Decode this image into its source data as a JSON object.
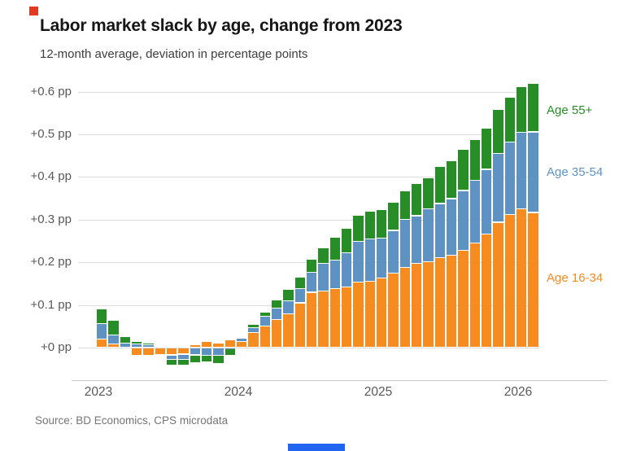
{
  "header": {
    "title": "Labor market slack by age, change from 2023",
    "subtitle": "12-month average, deviation in percentage points"
  },
  "footer": {
    "source": "Source: BD Economics, CPS microdata"
  },
  "decor": {
    "brand_chip_color": "#e23a20",
    "footer_bar_color": "#2165f0"
  },
  "chart_data": {
    "type": "bar",
    "stacked": true,
    "title": "Labor market slack by age, change from 2023",
    "subtitle": "12-month average, deviation in percentage points",
    "unit": "percentage points (pp)",
    "x_frequency": "monthly",
    "x": [
      "2023-01",
      "2023-02",
      "2023-03",
      "2023-04",
      "2023-05",
      "2023-06",
      "2023-07",
      "2023-08",
      "2023-09",
      "2023-10",
      "2023-11",
      "2023-12",
      "2024-01",
      "2024-02",
      "2024-03",
      "2024-04",
      "2024-05",
      "2024-06",
      "2024-07",
      "2024-08",
      "2024-09",
      "2024-10",
      "2024-11",
      "2024-12",
      "2025-01",
      "2025-02",
      "2025-03",
      "2025-04",
      "2025-05",
      "2025-06",
      "2025-07",
      "2025-08",
      "2025-09",
      "2025-10",
      "2025-11",
      "2025-12",
      "2026-01",
      "2026-02"
    ],
    "series": [
      {
        "name": "Age 16-34",
        "color": "#f68b1f",
        "values": [
          0.02,
          0.009,
          0.0,
          -0.018,
          -0.018,
          -0.017,
          -0.017,
          -0.015,
          0.007,
          0.015,
          0.011,
          0.019,
          0.015,
          0.035,
          0.051,
          0.066,
          0.08,
          0.105,
          0.13,
          0.133,
          0.138,
          0.142,
          0.154,
          0.155,
          0.163,
          0.175,
          0.188,
          0.197,
          0.201,
          0.211,
          0.216,
          0.228,
          0.245,
          0.266,
          0.294,
          0.312,
          0.326,
          0.317
        ]
      },
      {
        "name": "Age 35-54",
        "color": "#5e92c2",
        "values": [
          0.036,
          0.02,
          0.01,
          0.009,
          0.007,
          0.0,
          -0.01,
          -0.013,
          -0.017,
          -0.018,
          -0.018,
          -0.002,
          0.008,
          0.012,
          0.023,
          0.027,
          0.03,
          0.033,
          0.047,
          0.064,
          0.067,
          0.08,
          0.095,
          0.1,
          0.094,
          0.1,
          0.113,
          0.112,
          0.124,
          0.127,
          0.133,
          0.14,
          0.147,
          0.152,
          0.161,
          0.17,
          0.179,
          0.189
        ]
      },
      {
        "name": "Age 55+",
        "color": "#278e27",
        "values": [
          0.034,
          0.036,
          0.017,
          0.005,
          0.004,
          0.0,
          -0.015,
          -0.014,
          -0.019,
          -0.015,
          -0.019,
          -0.017,
          0.0,
          0.007,
          0.009,
          0.019,
          0.026,
          0.027,
          0.031,
          0.038,
          0.054,
          0.057,
          0.062,
          0.065,
          0.066,
          0.066,
          0.067,
          0.075,
          0.073,
          0.087,
          0.089,
          0.097,
          0.095,
          0.097,
          0.104,
          0.105,
          0.106,
          0.113
        ]
      }
    ],
    "ytick_labels": [
      "+0 pp",
      "+0.1 pp",
      "+0.2 pp",
      "+0.3 pp",
      "+0.4 pp",
      "+0.5 pp",
      "+0.6 pp"
    ],
    "ytick_values": [
      0,
      0.1,
      0.2,
      0.3,
      0.4,
      0.5,
      0.6
    ],
    "xtick_labels": [
      "2023",
      "2024",
      "2025",
      "2026"
    ],
    "ylim": [
      -0.06,
      0.64
    ],
    "grid": "horizontal",
    "legend_position": "right-annotations",
    "annotations": [
      {
        "text": "Age 55+",
        "color": "#278e27",
        "series": "Age 55+"
      },
      {
        "text": "Age 35-54",
        "color": "#5e92c2",
        "series": "Age 35-54"
      },
      {
        "text": "Age 16-34",
        "color": "#f68b1f",
        "series": "Age 16-34"
      }
    ]
  }
}
